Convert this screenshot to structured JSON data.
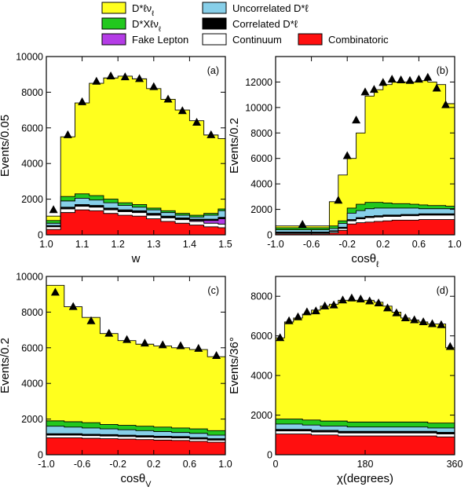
{
  "legend": {
    "items": [
      {
        "key": "signal",
        "label": "D*ℓν_ℓ",
        "color": "#ffff1e"
      },
      {
        "key": "uncorr",
        "label": "Uncorrelated D*ℓ",
        "color": "#87cfe9"
      },
      {
        "key": "dxlnu",
        "label": "D*Xℓν_ℓ",
        "color": "#22c81e"
      },
      {
        "key": "corr",
        "label": "Correlated D*ℓ",
        "color": "#000000"
      },
      {
        "key": "fake",
        "label": "Fake Lepton",
        "color": "#b43ce6"
      },
      {
        "key": "continuum",
        "label": "Continuum",
        "color": "#ffffff"
      },
      {
        "key": "combinatoric",
        "label": "Combinatoric",
        "color": "#ff0f0f"
      }
    ]
  },
  "chart_data": [
    {
      "type": "area",
      "panel_label": "(a)",
      "xlabel": "w",
      "ylabel": "Events/0.05",
      "xlim": [
        1.0,
        1.5
      ],
      "ylim": [
        0,
        10000
      ],
      "xticks": [
        1.0,
        1.1,
        1.2,
        1.3,
        1.4,
        1.5
      ],
      "xtick_labels": [
        "1.0",
        "1.1",
        "1.2",
        "1.3",
        "1.4",
        "1.5"
      ],
      "yticks": [
        0,
        2000,
        4000,
        6000,
        8000,
        10000
      ],
      "ytick_labels": [
        "0",
        "2000",
        "4000",
        "6000",
        "8000",
        "10000"
      ],
      "bin_edges": [
        1.0,
        1.04,
        1.08,
        1.12,
        1.16,
        1.2,
        1.24,
        1.28,
        1.32,
        1.36,
        1.4,
        1.44,
        1.48,
        1.5
      ],
      "stack_cumulative": {
        "combinatoric": [
          300,
          1250,
          1400,
          1350,
          1200,
          1100,
          1050,
          900,
          750,
          650,
          550,
          450,
          400
        ],
        "continuum": [
          450,
          1450,
          1600,
          1550,
          1400,
          1300,
          1250,
          1100,
          950,
          850,
          750,
          650,
          600
        ],
        "fake": [
          470,
          1480,
          1630,
          1580,
          1430,
          1330,
          1280,
          1130,
          980,
          880,
          800,
          800,
          900
        ],
        "corr": [
          520,
          1550,
          1700,
          1650,
          1500,
          1400,
          1350,
          1200,
          1050,
          950,
          880,
          880,
          980
        ],
        "uncorr": [
          650,
          1900,
          2050,
          1950,
          1800,
          1650,
          1550,
          1400,
          1250,
          1100,
          1000,
          1100,
          1350
        ],
        "dxlnu": [
          800,
          2150,
          2300,
          2200,
          2000,
          1800,
          1700,
          1500,
          1350,
          1200,
          1100,
          1200,
          1450
        ],
        "signal": [
          1050,
          5500,
          7400,
          8500,
          8800,
          8900,
          8750,
          8200,
          7600,
          7000,
          6400,
          5600,
          5400
        ]
      },
      "data_points": {
        "x": [
          1.02,
          1.06,
          1.1,
          1.14,
          1.18,
          1.22,
          1.26,
          1.3,
          1.34,
          1.38,
          1.42,
          1.46
        ],
        "y": [
          1400,
          5600,
          7450,
          8600,
          8900,
          8850,
          8750,
          8300,
          7600,
          6950,
          6300,
          5600
        ]
      }
    },
    {
      "type": "area",
      "panel_label": "(b)",
      "xlabel": "cosθ_ℓ",
      "ylabel": "Events/0.2",
      "xlim": [
        -1.0,
        1.0
      ],
      "ylim": [
        0,
        14000
      ],
      "xticks": [
        -1.0,
        -0.6,
        -0.2,
        0.2,
        0.6,
        1.0
      ],
      "xtick_labels": [
        "-1.0",
        "-0.6",
        "-0.2",
        "0.2",
        "0.6",
        "1.0"
      ],
      "yticks": [
        0,
        2000,
        4000,
        6000,
        8000,
        10000,
        12000
      ],
      "ytick_labels": [
        "0",
        "2000",
        "4000",
        "6000",
        "8000",
        "10000",
        "12000"
      ],
      "bin_edges": [
        -1.0,
        -0.8,
        -0.6,
        -0.4,
        -0.3,
        -0.2,
        -0.1,
        0.0,
        0.1,
        0.2,
        0.3,
        0.4,
        0.5,
        0.6,
        0.7,
        0.8,
        0.9,
        1.0
      ],
      "stack_cumulative": {
        "combinatoric": [
          80,
          80,
          80,
          150,
          350,
          850,
          950,
          1000,
          1050,
          1100,
          1150,
          1150,
          1150,
          1200,
          1200,
          1200,
          1200
        ],
        "continuum": [
          150,
          150,
          150,
          250,
          500,
          1100,
          1250,
          1350,
          1400,
          1450,
          1450,
          1500,
          1500,
          1550,
          1550,
          1550,
          1550
        ],
        "fake": [
          170,
          170,
          170,
          270,
          520,
          1120,
          1270,
          1370,
          1420,
          1470,
          1470,
          1520,
          1520,
          1570,
          1570,
          1570,
          1570
        ],
        "corr": [
          220,
          220,
          220,
          320,
          600,
          1200,
          1350,
          1450,
          1500,
          1550,
          1550,
          1600,
          1600,
          1650,
          1650,
          1650,
          1650
        ],
        "uncorr": [
          400,
          400,
          400,
          500,
          900,
          1700,
          1900,
          2050,
          2100,
          2100,
          2100,
          2100,
          2100,
          2050,
          2050,
          2050,
          2050
        ],
        "dxlnu": [
          550,
          550,
          550,
          700,
          1100,
          2100,
          2400,
          2550,
          2550,
          2500,
          2450,
          2450,
          2400,
          2350,
          2300,
          2300,
          2250
        ],
        "signal": [
          700,
          700,
          700,
          2600,
          4700,
          6000,
          8000,
          10900,
          11400,
          11800,
          12000,
          12000,
          12000,
          12100,
          12000,
          11800,
          10300
        ]
      },
      "data_points": {
        "x": [
          -0.7,
          -0.3,
          -0.2,
          -0.1,
          0.0,
          0.1,
          0.2,
          0.3,
          0.4,
          0.5,
          0.6,
          0.7,
          0.8,
          0.9
        ],
        "y": [
          800,
          2700,
          6200,
          9000,
          11200,
          11400,
          11950,
          12200,
          12150,
          12100,
          12200,
          12350,
          11500,
          10200
        ]
      }
    },
    {
      "type": "area",
      "panel_label": "(c)",
      "xlabel": "cosθ_V",
      "ylabel": "Events/0.2",
      "xlim": [
        -1.0,
        1.0
      ],
      "ylim": [
        0,
        10000
      ],
      "xticks": [
        -1.0,
        -0.6,
        -0.2,
        0.2,
        0.6,
        1.0
      ],
      "xtick_labels": [
        "-1.0",
        "-0.6",
        "-0.2",
        "0.2",
        "0.6",
        "1.0"
      ],
      "yticks": [
        0,
        2000,
        4000,
        6000,
        8000,
        10000
      ],
      "ytick_labels": [
        "0",
        "2000",
        "4000",
        "6000",
        "8000",
        "10000"
      ],
      "bin_edges": [
        -1.0,
        -0.8,
        -0.6,
        -0.4,
        -0.2,
        0.0,
        0.2,
        0.4,
        0.6,
        0.8,
        1.0
      ],
      "stack_cumulative": {
        "combinatoric": [
          950,
          950,
          920,
          900,
          880,
          850,
          820,
          800,
          750,
          700
        ],
        "continuum": [
          1100,
          1100,
          1070,
          1050,
          1020,
          990,
          960,
          940,
          880,
          820
        ],
        "fake": [
          1120,
          1120,
          1090,
          1070,
          1040,
          1010,
          980,
          960,
          900,
          840
        ],
        "corr": [
          1180,
          1180,
          1150,
          1130,
          1100,
          1070,
          1040,
          1020,
          960,
          900
        ],
        "uncorr": [
          1600,
          1550,
          1500,
          1450,
          1400,
          1350,
          1300,
          1250,
          1200,
          1100
        ],
        "dxlnu": [
          1900,
          1850,
          1800,
          1700,
          1650,
          1600,
          1550,
          1500,
          1450,
          1350
        ],
        "signal": [
          9500,
          8300,
          7700,
          6800,
          6400,
          6200,
          6100,
          6000,
          5900,
          5500
        ]
      },
      "data_points": {
        "x": [
          -0.9,
          -0.7,
          -0.5,
          -0.3,
          -0.1,
          0.1,
          0.3,
          0.5,
          0.7,
          0.9
        ],
        "y": [
          9100,
          8300,
          7500,
          6800,
          6450,
          6250,
          6150,
          6100,
          5950,
          5550
        ]
      }
    },
    {
      "type": "area",
      "panel_label": "(d)",
      "xlabel": "χ(degrees)",
      "ylabel": "Events/36°",
      "xlim": [
        0,
        360
      ],
      "ylim": [
        0,
        9000
      ],
      "xticks": [
        0,
        180,
        360
      ],
      "xtick_labels": [
        "0",
        "180",
        "360"
      ],
      "yticks": [
        0,
        2000,
        4000,
        6000,
        8000
      ],
      "ytick_labels": [
        "0",
        "2000",
        "4000",
        "6000",
        "8000"
      ],
      "bin_edges": [
        0,
        18,
        36,
        54,
        72,
        90,
        108,
        126,
        144,
        162,
        180,
        198,
        216,
        234,
        252,
        270,
        288,
        306,
        324,
        342,
        360
      ],
      "stack_cumulative": {
        "combinatoric": [
          1050,
          1050,
          1050,
          1050,
          1000,
          1000,
          1000,
          950,
          950,
          950,
          950,
          950,
          950,
          950,
          950,
          950,
          950,
          950,
          900,
          900
        ],
        "continuum": [
          1200,
          1200,
          1200,
          1200,
          1150,
          1150,
          1150,
          1100,
          1100,
          1100,
          1100,
          1100,
          1100,
          1100,
          1100,
          1100,
          1100,
          1100,
          1050,
          1050
        ],
        "fake": [
          1220,
          1220,
          1220,
          1220,
          1170,
          1170,
          1170,
          1120,
          1120,
          1120,
          1120,
          1120,
          1120,
          1120,
          1120,
          1120,
          1120,
          1120,
          1070,
          1070
        ],
        "corr": [
          1280,
          1280,
          1280,
          1280,
          1230,
          1230,
          1230,
          1180,
          1180,
          1180,
          1180,
          1180,
          1180,
          1180,
          1180,
          1180,
          1180,
          1180,
          1130,
          1130
        ],
        "uncorr": [
          1550,
          1550,
          1550,
          1500,
          1500,
          1450,
          1450,
          1450,
          1400,
          1400,
          1400,
          1400,
          1400,
          1400,
          1400,
          1400,
          1400,
          1350,
          1350,
          1350
        ],
        "dxlnu": [
          1800,
          1800,
          1800,
          1750,
          1750,
          1700,
          1700,
          1700,
          1650,
          1650,
          1650,
          1650,
          1650,
          1650,
          1650,
          1650,
          1650,
          1600,
          1600,
          1600
        ],
        "signal": [
          5900,
          6700,
          6900,
          7100,
          7300,
          7500,
          7600,
          7800,
          7800,
          7800,
          7800,
          7700,
          7500,
          7200,
          6900,
          6800,
          6700,
          6600,
          6600,
          5400
        ]
      },
      "data_points": {
        "x": [
          9,
          27,
          45,
          63,
          81,
          99,
          117,
          135,
          153,
          171,
          189,
          207,
          225,
          243,
          261,
          279,
          297,
          315,
          333,
          351
        ],
        "y": [
          5900,
          6750,
          6950,
          7200,
          7250,
          7500,
          7550,
          7800,
          7900,
          7850,
          7750,
          7650,
          7400,
          7150,
          6900,
          6800,
          6700,
          6600,
          6550,
          5450
        ]
      }
    }
  ]
}
